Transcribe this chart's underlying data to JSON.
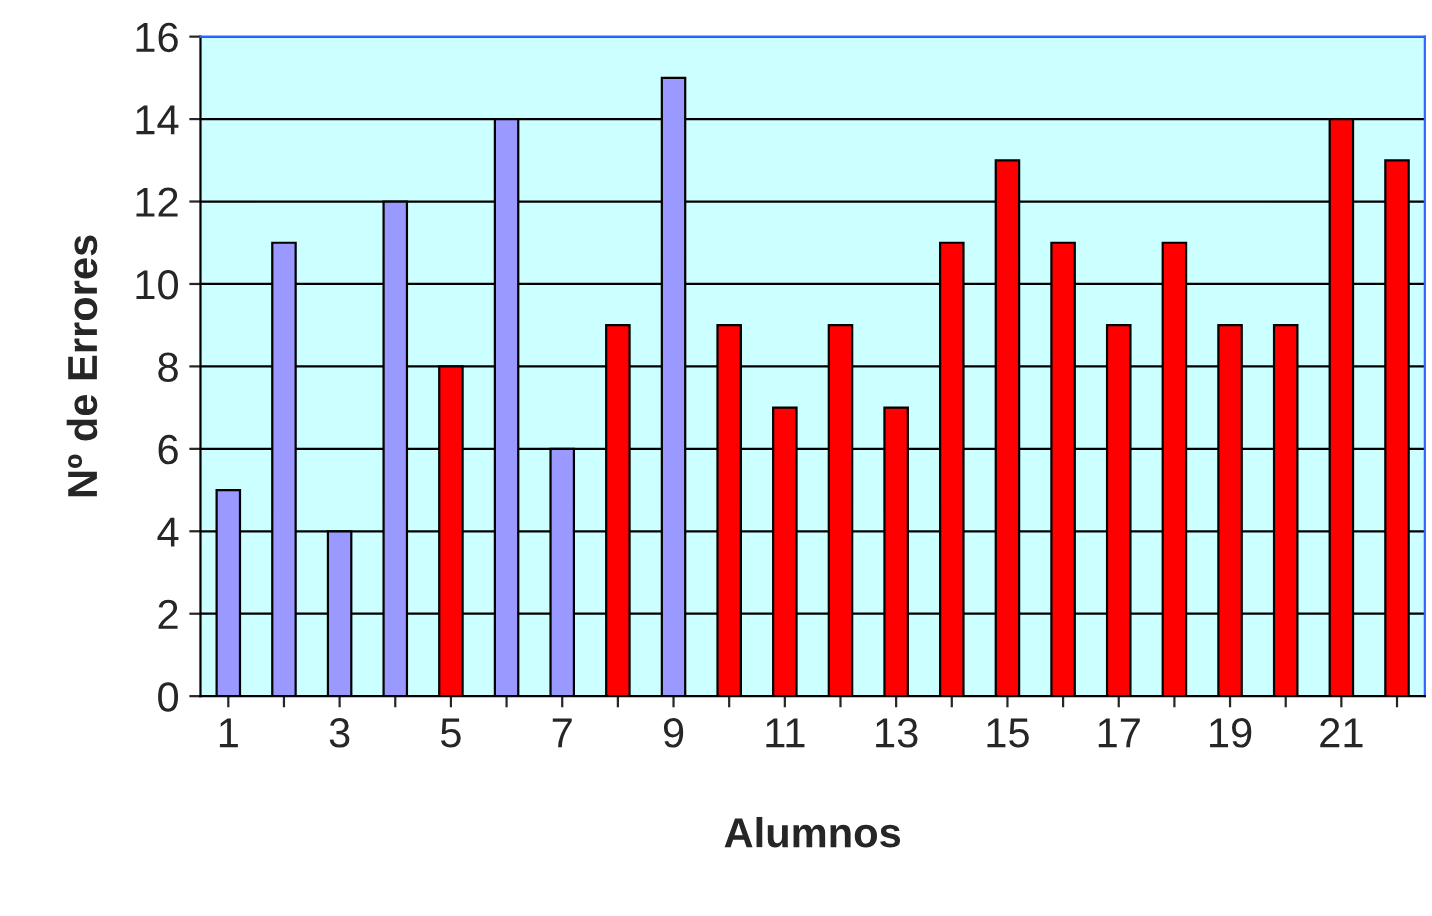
{
  "chart_data": {
    "type": "bar",
    "xlabel": "Alumnos",
    "ylabel": "Nº de Errores",
    "categories": [
      "1",
      null,
      "3",
      null,
      "5",
      null,
      "7",
      null,
      "9",
      null,
      "11",
      null,
      "13",
      null,
      "15",
      null,
      "17",
      null,
      "19",
      null,
      "21",
      null
    ],
    "values": [
      5,
      11,
      4,
      12,
      8,
      14,
      6,
      9,
      15,
      9,
      7,
      9,
      7,
      11,
      13,
      11,
      9,
      11,
      9,
      9,
      14,
      13
    ],
    "colors": [
      "#9999ff",
      "#9999ff",
      "#9999ff",
      "#9999ff",
      "#ff0000",
      "#9999ff",
      "#9999ff",
      "#ff0000",
      "#9999ff",
      "#ff0000",
      "#ff0000",
      "#ff0000",
      "#ff0000",
      "#ff0000",
      "#ff0000",
      "#ff0000",
      "#ff0000",
      "#ff0000",
      "#ff0000",
      "#ff0000",
      "#ff0000",
      "#ff0000"
    ],
    "ylim": [
      0,
      16
    ],
    "yticks": [
      0,
      2,
      4,
      6,
      8,
      10,
      12,
      14,
      16
    ],
    "grid": "y"
  }
}
